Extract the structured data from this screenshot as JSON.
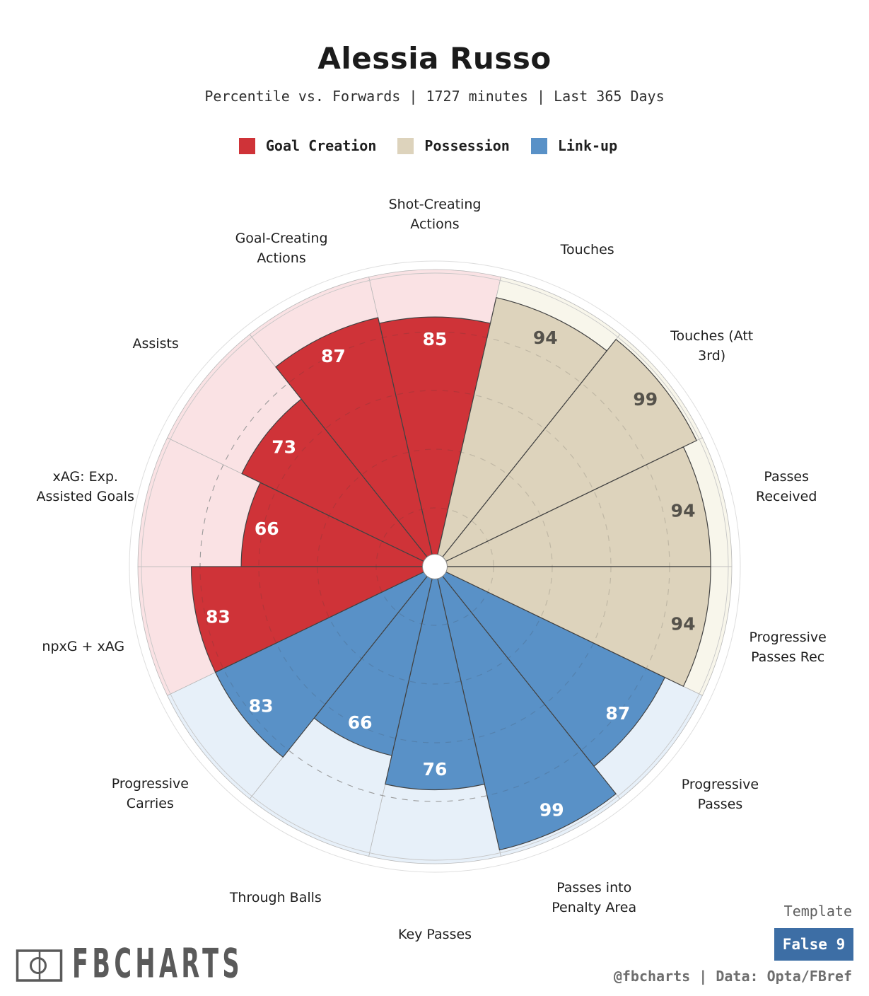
{
  "header": {
    "title": "Alessia Russo",
    "subtitle": "Percentile vs. Forwards | 1727 minutes | Last 365 Days"
  },
  "legend": [
    {
      "label": "Goal Creation",
      "color": "#cf3338"
    },
    {
      "label": "Possession",
      "color": "#ddd3bc"
    },
    {
      "label": "Link-up",
      "color": "#5991c7"
    }
  ],
  "chart_data": {
    "type": "pie",
    "subtype": "pizza-percentile-polar-bars",
    "unit": "percentile",
    "rlim": [
      0,
      100
    ],
    "gridlines": [
      20,
      40,
      60,
      80,
      100
    ],
    "grid_style": "dashed",
    "groups": {
      "Goal Creation": {
        "fill": "#cf3338",
        "bg": "#fae2e4",
        "value_text": "#ffffff"
      },
      "Possession": {
        "fill": "#ddd3bc",
        "bg": "#f8f6eb",
        "value_text": "#55524b"
      },
      "Link-up": {
        "fill": "#5991c7",
        "bg": "#e7f0f9",
        "value_text": "#ffffff"
      }
    },
    "slices": [
      {
        "label": "Shot-Creating Actions",
        "lines": [
          "Shot-Creating",
          "Actions"
        ],
        "value": 85,
        "group": "Goal Creation"
      },
      {
        "label": "Touches",
        "lines": [
          "Touches"
        ],
        "value": 94,
        "group": "Possession"
      },
      {
        "label": "Touches (Att 3rd)",
        "lines": [
          "Touches (Att",
          "3rd)"
        ],
        "value": 99,
        "group": "Possession"
      },
      {
        "label": "Passes Received",
        "lines": [
          "Passes",
          "Received"
        ],
        "value": 94,
        "group": "Possession"
      },
      {
        "label": "Progressive Passes Rec",
        "lines": [
          "Progressive",
          "Passes Rec"
        ],
        "value": 94,
        "group": "Possession"
      },
      {
        "label": "Progressive Passes",
        "lines": [
          "Progressive",
          "Passes"
        ],
        "value": 87,
        "group": "Link-up"
      },
      {
        "label": "Passes into Penalty Area",
        "lines": [
          "Passes into",
          "Penalty Area"
        ],
        "value": 99,
        "group": "Link-up"
      },
      {
        "label": "Key Passes",
        "lines": [
          "Key Passes"
        ],
        "value": 76,
        "group": "Link-up"
      },
      {
        "label": "Through Balls",
        "lines": [
          "Through Balls"
        ],
        "value": 66,
        "group": "Link-up"
      },
      {
        "label": "Progressive Carries",
        "lines": [
          "Progressive",
          "Carries"
        ],
        "value": 83,
        "group": "Link-up"
      },
      {
        "label": "npxG + xAG",
        "lines": [
          "npxG + xAG"
        ],
        "value": 83,
        "group": "Goal Creation"
      },
      {
        "label": "xAG: Exp. Assisted Goals",
        "lines": [
          "xAG: Exp.",
          "Assisted Goals"
        ],
        "value": 66,
        "group": "Goal Creation"
      },
      {
        "label": "Assists",
        "lines": [
          "Assists"
        ],
        "value": 73,
        "group": "Goal Creation"
      },
      {
        "label": "Goal-Creating Actions",
        "lines": [
          "Goal-Creating",
          "Actions"
        ],
        "value": 87,
        "group": "Goal Creation"
      }
    ]
  },
  "footer": {
    "brand": "FBCHARTS",
    "credit": "@fbcharts | Data: Opta/FBref",
    "template_label": "Template",
    "template_value": "False 9",
    "badge_color": "#3d6ea5"
  }
}
